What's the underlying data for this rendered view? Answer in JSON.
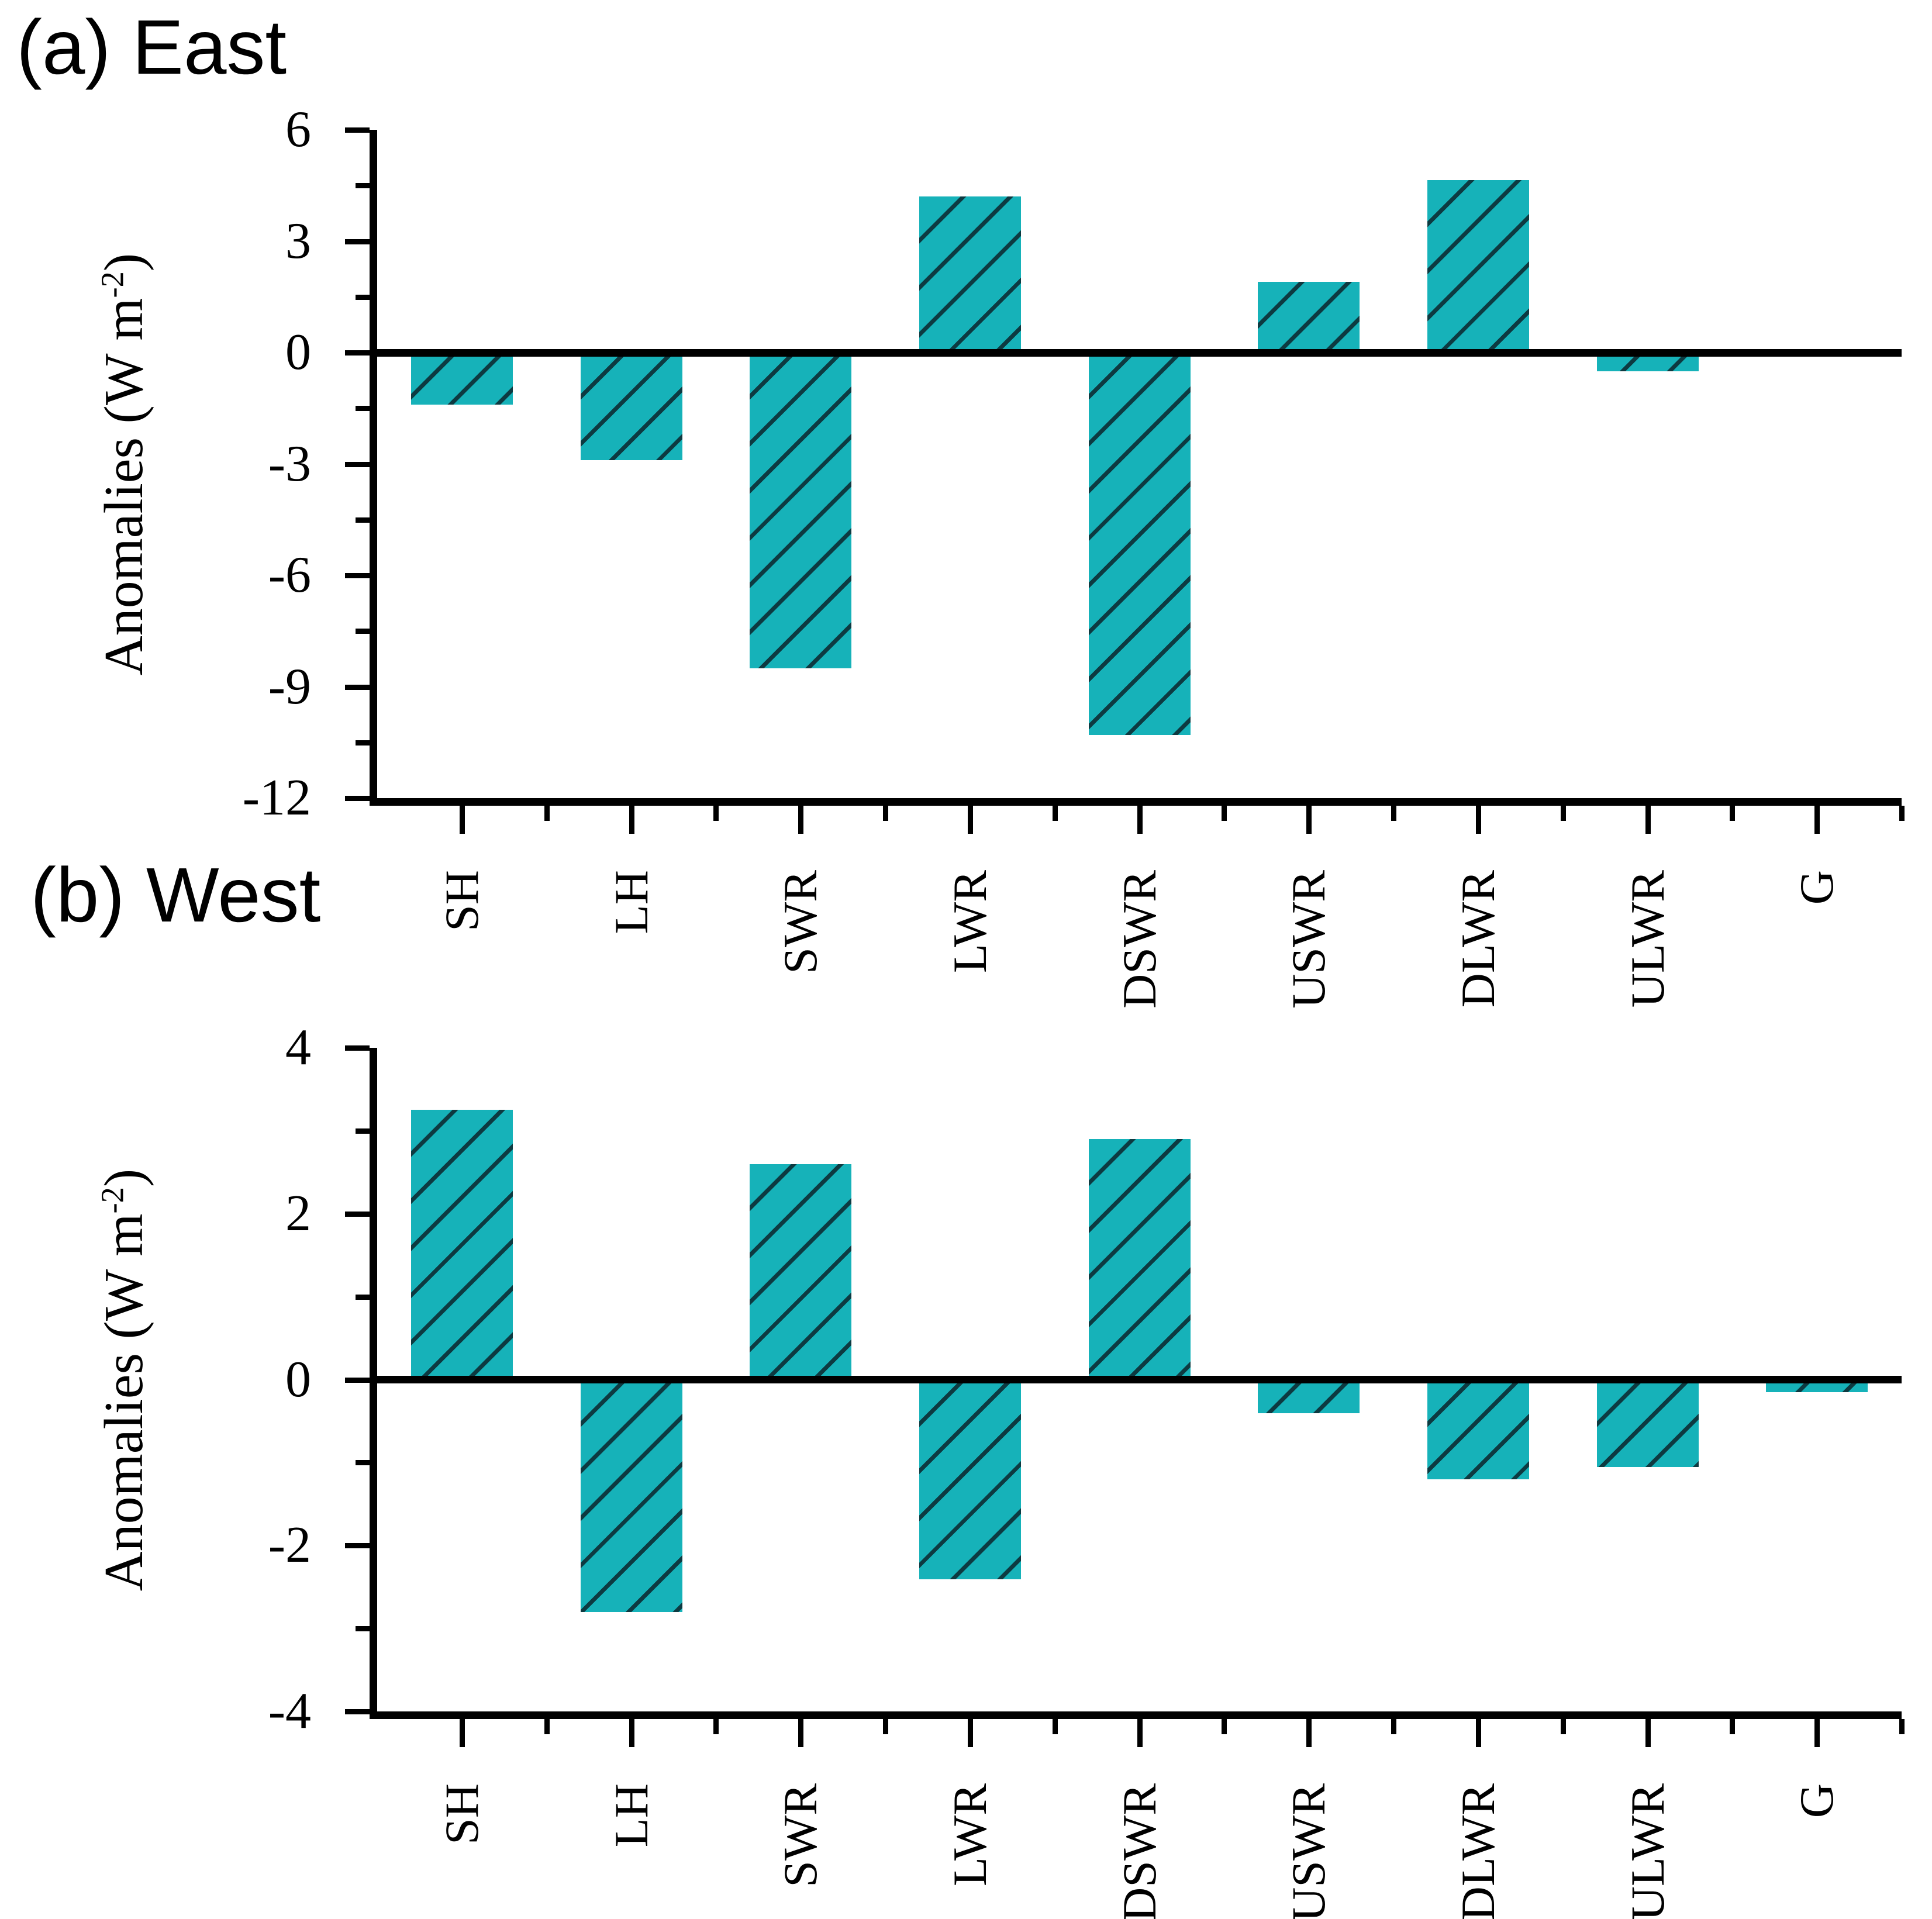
{
  "figure": {
    "background": "#ffffff",
    "bar_fill_color": "#16b2b9",
    "hatch_line_color": "#0d3a41",
    "axis_color": "#000000"
  },
  "chart_data": [
    {
      "type": "bar",
      "title": "(a) East",
      "categories": [
        "SH",
        "LH",
        "SWR",
        "LWR",
        "DSWR",
        "USWR",
        "DLWR",
        "ULWR",
        "G"
      ],
      "values": [
        -1.4,
        -2.9,
        -8.5,
        4.2,
        -10.3,
        1.9,
        4.65,
        -0.5,
        0.0
      ],
      "xlabel": "",
      "ylabel": "Anomalies (W m-2)",
      "ylabel_parts": {
        "prefix": "Anomalies (W m",
        "sup": "-2",
        "suffix": ")"
      },
      "ylim": [
        -12,
        6
      ],
      "yticks": [
        6,
        3,
        0,
        -3,
        -6,
        -9,
        -12
      ],
      "ytick_labels": [
        "6",
        "3",
        "0",
        "-3",
        "-6",
        "-9",
        "-12"
      ],
      "minor_tick_step": 1.5,
      "bar_color": "#16b2b9",
      "hatch": "/",
      "hatch_color": "#0d3a41",
      "grid": false,
      "legend_position": "none"
    },
    {
      "type": "bar",
      "title": "(b) West",
      "categories": [
        "SH",
        "LH",
        "SWR",
        "LWR",
        "DSWR",
        "USWR",
        "DLWR",
        "ULWR",
        "G"
      ],
      "values": [
        3.25,
        -2.8,
        2.6,
        -2.4,
        2.9,
        -0.4,
        -1.2,
        -1.05,
        -0.15
      ],
      "xlabel": "",
      "ylabel": "Anomalies (W m-2)",
      "ylabel_parts": {
        "prefix": "Anomalies (W m",
        "sup": "-2",
        "suffix": ")"
      },
      "ylim": [
        -4,
        4
      ],
      "yticks": [
        4,
        2,
        0,
        -2,
        -4
      ],
      "ytick_labels": [
        "4",
        "2",
        "0",
        "-2",
        "-4"
      ],
      "minor_tick_step": 1,
      "bar_color": "#16b2b9",
      "hatch": "/",
      "hatch_color": "#0d3a41",
      "grid": false,
      "legend_position": "none"
    }
  ]
}
